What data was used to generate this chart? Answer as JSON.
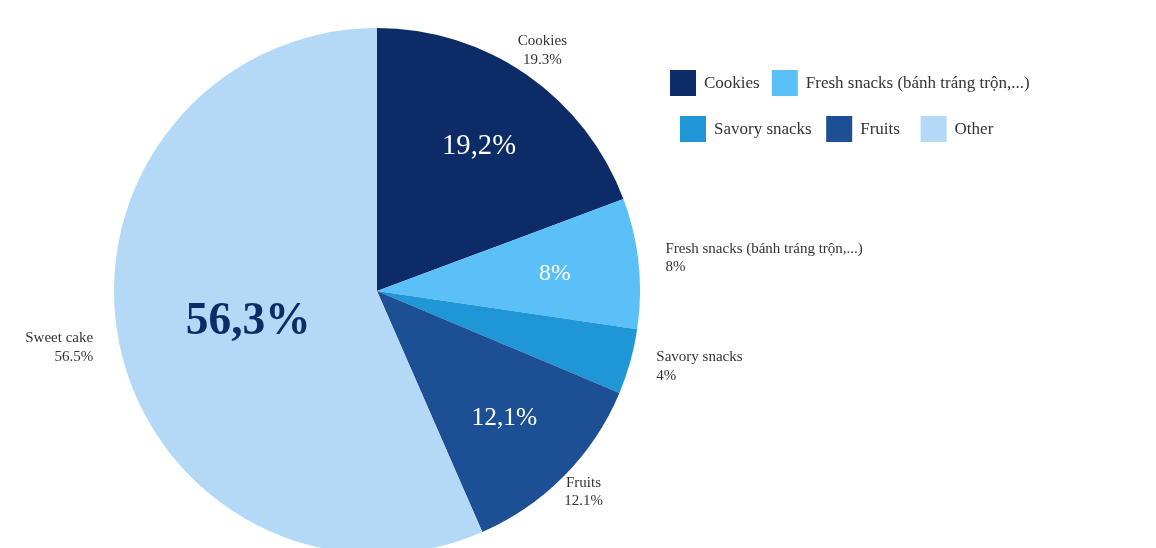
{
  "chart_data": {
    "type": "pie",
    "categories": [
      "Cookies",
      "Fresh snacks (bánh tráng trộn,...)",
      "Savory snacks",
      "Fruits",
      "Sweet cake"
    ],
    "values": [
      19.3,
      8,
      4,
      12.1,
      56.5
    ],
    "colors": [
      "#0d2b66",
      "#5bc0f8",
      "#1f97d6",
      "#1c4f94",
      "#b3d9f7"
    ],
    "value_labels": [
      "19.3%",
      "8%",
      "4%",
      "12.1%",
      "56.5%"
    ],
    "legend": "top right",
    "annotations": [
      "Other",
      {
        "text": "19,2%",
        "x": "Cookies"
      },
      {
        "text": "8%",
        "x": "Fresh snacks (bánh tráng trộn,...)"
      },
      {
        "text": "12,1%",
        "x": "Fruits"
      },
      {
        "text": "56,3%",
        "x": "Sweet cake"
      }
    ]
  }
}
